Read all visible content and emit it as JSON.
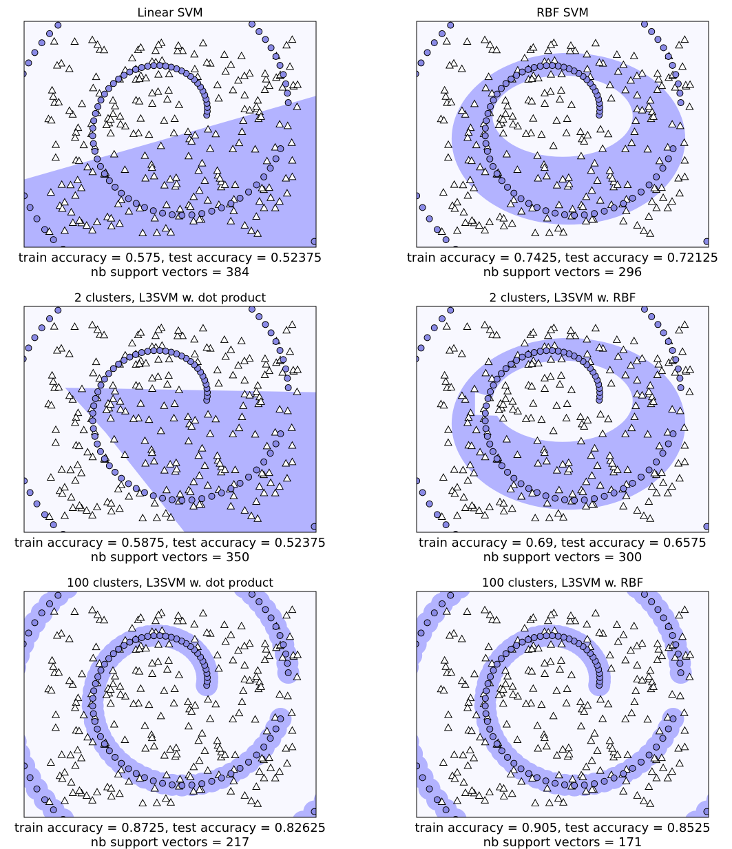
{
  "figure": {
    "colors": {
      "background": "#f8f8ff",
      "region": "#b3b3ff",
      "circle": "#8a8ae6",
      "triangle": "#ffffff",
      "edge": "#000000"
    }
  },
  "chart_data": [
    {
      "type": "scatter",
      "title": "Linear SVM",
      "caption": [
        "train accuracy = 0.575, test accuracy = 0.52375",
        "nb support vectors = 384"
      ],
      "region": "linear",
      "ticks": "none",
      "series": [
        {
          "marker": "circle"
        },
        {
          "marker": "triangle"
        }
      ]
    },
    {
      "type": "scatter",
      "title": "RBF SVM",
      "caption": [
        "train accuracy = 0.7425, test accuracy = 0.72125",
        "nb support vectors = 296"
      ],
      "region": "rbf",
      "ticks": "none",
      "series": [
        {
          "marker": "circle"
        },
        {
          "marker": "triangle"
        }
      ]
    },
    {
      "type": "scatter",
      "title": "2 clusters, L3SVM w. dot product",
      "caption": [
        "train accuracy = 0.5875, test accuracy = 0.52375",
        "nb support vectors = 350"
      ],
      "region": "piecewise-linear",
      "ticks": "none",
      "series": [
        {
          "marker": "circle"
        },
        {
          "marker": "triangle"
        }
      ]
    },
    {
      "type": "scatter",
      "title": "2 clusters, L3SVM w. RBF",
      "caption": [
        "train accuracy = 0.69, test accuracy = 0.6575",
        "nb support vectors = 300"
      ],
      "region": "rbf-split",
      "ticks": "none",
      "series": [
        {
          "marker": "circle"
        },
        {
          "marker": "triangle"
        }
      ]
    },
    {
      "type": "scatter",
      "title": "100 clusters, L3SVM w. dot product",
      "caption": [
        "train accuracy = 0.8725, test accuracy = 0.82625",
        "nb support vectors = 217"
      ],
      "region": "spiral-band",
      "ticks": "none",
      "series": [
        {
          "marker": "circle"
        },
        {
          "marker": "triangle"
        }
      ]
    },
    {
      "type": "scatter",
      "title": "100 clusters, L3SVM w. RBF",
      "caption": [
        "train accuracy = 0.905, test accuracy = 0.8525",
        "nb support vectors = 171"
      ],
      "region": "spiral-band",
      "ticks": "none",
      "series": [
        {
          "marker": "circle"
        },
        {
          "marker": "triangle"
        }
      ]
    }
  ]
}
